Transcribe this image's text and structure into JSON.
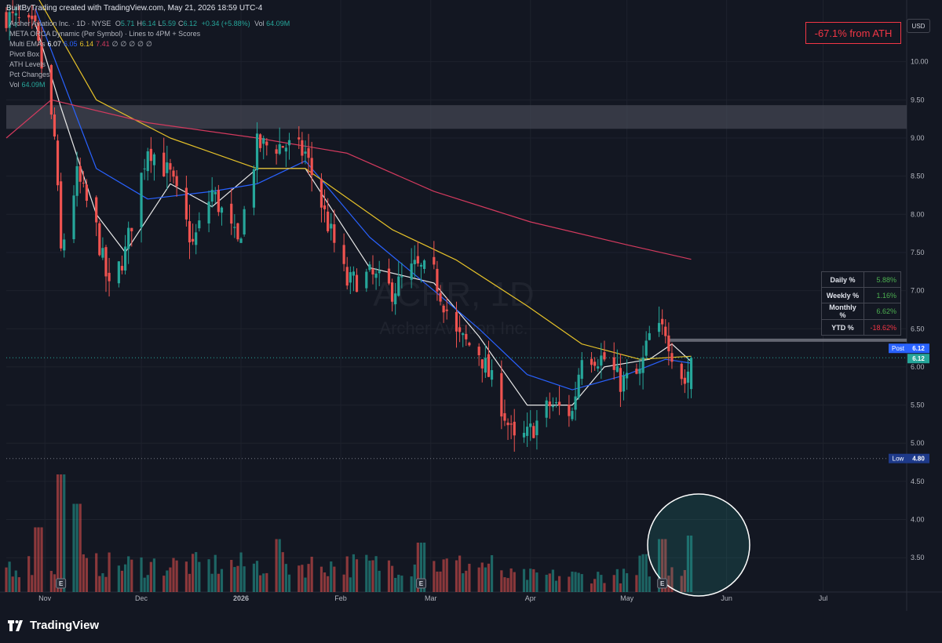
{
  "header": {
    "credit": "BuiltByTrading created with TradingView.com, May 21, 2026 18:59 UTC-4"
  },
  "legend": {
    "symbol_line": "Archer Aviation Inc. · 1D · NYSE",
    "ohlc": [
      {
        "label": "O",
        "value": "5.71"
      },
      {
        "label": "H",
        "value": "6.14"
      },
      {
        "label": "L",
        "value": "5.59"
      },
      {
        "label": "C",
        "value": "6.12"
      }
    ],
    "change": "+0.34 (+5.88%)",
    "vol_label": "Vol",
    "vol_value": "64.09M",
    "indicators": [
      {
        "name": "META ORCA Dynamic (Per Symbol) · Lines to 4PM + Scores",
        "values": []
      },
      {
        "name": "Multi EMAs",
        "values": [
          {
            "text": "6.07",
            "color": "#ffffff"
          },
          {
            "text": "6.05",
            "color": "#2962ff"
          },
          {
            "text": "6.14",
            "color": "#e6c229"
          },
          {
            "text": "7.41",
            "color": "#d33a5e"
          },
          {
            "text": "∅",
            "color": "#b2b5be"
          },
          {
            "text": "∅",
            "color": "#b2b5be"
          },
          {
            "text": "∅",
            "color": "#b2b5be"
          },
          {
            "text": "∅",
            "color": "#b2b5be"
          },
          {
            "text": "∅",
            "color": "#b2b5be"
          }
        ]
      },
      {
        "name": "Pivot Box",
        "values": []
      },
      {
        "name": "ATH Levels",
        "values": []
      },
      {
        "name": "Pct Changes",
        "values": []
      },
      {
        "name": "Vol",
        "values": [
          {
            "text": "64.09M",
            "color": "#26a69a"
          }
        ]
      }
    ]
  },
  "ath_box": "-67.1% from ATH",
  "currency": "USD",
  "watermark": {
    "ticker": "ACHR, 1D",
    "name": "Archer Aviation Inc."
  },
  "pct_table": [
    {
      "label": "Daily %",
      "value": "5.88%",
      "color": "#4caf50"
    },
    {
      "label": "Weekly %",
      "value": "1.16%",
      "color": "#4caf50"
    },
    {
      "label": "Monthly %",
      "value": "6.62%",
      "color": "#4caf50"
    },
    {
      "label": "YTD %",
      "value": "-18.62%",
      "color": "#f23645"
    }
  ],
  "price_labels": [
    {
      "tag": "Post",
      "value": "6.12",
      "color": "#2962ff"
    },
    {
      "tag": "",
      "value": "6.12",
      "color": "#26a69a"
    },
    {
      "tag": "Low",
      "value": "4.80",
      "color": "#1e3a8a"
    }
  ],
  "earnings_marker": "E",
  "footer": {
    "brand": "TradingView"
  },
  "colors": {
    "up": "#26a69a",
    "down": "#ef5350",
    "background": "#131722",
    "grid": "#1e222d",
    "text": "#b2b5be"
  },
  "chart_data": {
    "type": "candlestick",
    "title": "Archer Aviation Inc. · 1D · NYSE",
    "y_axis": {
      "ticks": [
        3.5,
        4.0,
        4.5,
        5.0,
        5.5,
        6.0,
        6.5,
        7.0,
        7.5,
        8.0,
        8.5,
        9.0,
        9.5,
        10.0
      ],
      "range": [
        3.05,
        10.5
      ],
      "side": "right"
    },
    "x_axis": {
      "labels": [
        "Nov",
        "Dec",
        "2026",
        "Feb",
        "Mar",
        "Apr",
        "May",
        "Jun",
        "Jul"
      ],
      "start_date": "2025-10-20",
      "end_date": "2026-07-27"
    },
    "levels": {
      "post": 6.12,
      "last": 6.12,
      "low": 4.8,
      "resistance_line": 6.35
    },
    "zones": [
      {
        "from": 9.12,
        "to": 9.43,
        "label": "Pivot Box"
      }
    ],
    "keypoints": [
      {
        "date": "2025-10-20",
        "price": 10.6
      },
      {
        "date": "2025-10-29",
        "price": 10.4
      },
      {
        "date": "2025-11-04",
        "price": 9.0
      },
      {
        "date": "2025-11-06",
        "price": 7.5
      },
      {
        "date": "2025-11-11",
        "price": 8.5
      },
      {
        "date": "2025-11-17",
        "price": 7.8
      },
      {
        "date": "2025-11-21",
        "price": 7.0
      },
      {
        "date": "2025-11-26",
        "price": 7.5
      },
      {
        "date": "2025-12-03",
        "price": 8.9
      },
      {
        "date": "2025-12-10",
        "price": 8.5
      },
      {
        "date": "2025-12-17",
        "price": 7.6
      },
      {
        "date": "2025-12-23",
        "price": 8.3
      },
      {
        "date": "2025-12-31",
        "price": 7.6
      },
      {
        "date": "2026-01-06",
        "price": 8.9
      },
      {
        "date": "2026-01-15",
        "price": 8.9
      },
      {
        "date": "2026-01-21",
        "price": 8.8
      },
      {
        "date": "2026-01-27",
        "price": 8.0
      },
      {
        "date": "2026-02-03",
        "price": 7.1
      },
      {
        "date": "2026-02-10",
        "price": 7.2
      },
      {
        "date": "2026-02-17",
        "price": 7.0
      },
      {
        "date": "2026-02-24",
        "price": 7.3
      },
      {
        "date": "2026-03-02",
        "price": 7.2
      },
      {
        "date": "2026-03-09",
        "price": 6.4
      },
      {
        "date": "2026-03-16",
        "price": 6.2
      },
      {
        "date": "2026-03-23",
        "price": 5.5
      },
      {
        "date": "2026-03-27",
        "price": 5.0
      },
      {
        "date": "2026-03-31",
        "price": 5.1
      },
      {
        "date": "2026-04-07",
        "price": 5.5
      },
      {
        "date": "2026-04-14",
        "price": 5.4
      },
      {
        "date": "2026-04-17",
        "price": 6.2
      },
      {
        "date": "2026-04-24",
        "price": 6.1
      },
      {
        "date": "2026-04-29",
        "price": 5.8
      },
      {
        "date": "2026-05-05",
        "price": 5.9
      },
      {
        "date": "2026-05-08",
        "price": 6.4
      },
      {
        "date": "2026-05-13",
        "price": 6.5
      },
      {
        "date": "2026-05-15",
        "price": 6.2
      },
      {
        "date": "2026-05-19",
        "price": 5.8
      },
      {
        "date": "2026-05-21",
        "price": 6.12
      }
    ],
    "emas": [
      {
        "name": "EMA white",
        "color": "#e8e8e8",
        "points": [
          {
            "date": "2025-10-29",
            "price": 10.5
          },
          {
            "date": "2025-11-06",
            "price": 9.4
          },
          {
            "date": "2025-11-17",
            "price": 8.0
          },
          {
            "date": "2025-11-26",
            "price": 7.5
          },
          {
            "date": "2025-12-10",
            "price": 8.4
          },
          {
            "date": "2025-12-23",
            "price": 8.1
          },
          {
            "date": "2026-01-06",
            "price": 8.6
          },
          {
            "date": "2026-01-21",
            "price": 8.6
          },
          {
            "date": "2026-02-10",
            "price": 7.3
          },
          {
            "date": "2026-03-02",
            "price": 7.1
          },
          {
            "date": "2026-03-16",
            "price": 6.4
          },
          {
            "date": "2026-03-31",
            "price": 5.5
          },
          {
            "date": "2026-04-14",
            "price": 5.5
          },
          {
            "date": "2026-04-24",
            "price": 6.0
          },
          {
            "date": "2026-05-08",
            "price": 6.1
          },
          {
            "date": "2026-05-15",
            "price": 6.3
          },
          {
            "date": "2026-05-21",
            "price": 6.07
          }
        ]
      },
      {
        "name": "EMA blue",
        "color": "#2962ff",
        "points": [
          {
            "date": "2025-10-29",
            "price": 10.7
          },
          {
            "date": "2025-11-17",
            "price": 8.6
          },
          {
            "date": "2025-12-03",
            "price": 8.2
          },
          {
            "date": "2025-12-23",
            "price": 8.3
          },
          {
            "date": "2026-01-06",
            "price": 8.4
          },
          {
            "date": "2026-01-21",
            "price": 8.7
          },
          {
            "date": "2026-02-10",
            "price": 7.7
          },
          {
            "date": "2026-03-02",
            "price": 7.0
          },
          {
            "date": "2026-03-16",
            "price": 6.5
          },
          {
            "date": "2026-03-31",
            "price": 5.9
          },
          {
            "date": "2026-04-14",
            "price": 5.7
          },
          {
            "date": "2026-05-01",
            "price": 5.9
          },
          {
            "date": "2026-05-13",
            "price": 6.1
          },
          {
            "date": "2026-05-21",
            "price": 6.05
          }
        ]
      },
      {
        "name": "EMA yellow",
        "color": "#e6c229",
        "points": [
          {
            "date": "2025-10-29",
            "price": 10.9
          },
          {
            "date": "2025-11-17",
            "price": 9.5
          },
          {
            "date": "2025-12-10",
            "price": 9.0
          },
          {
            "date": "2026-01-06",
            "price": 8.6
          },
          {
            "date": "2026-01-21",
            "price": 8.6
          },
          {
            "date": "2026-02-17",
            "price": 7.8
          },
          {
            "date": "2026-03-09",
            "price": 7.4
          },
          {
            "date": "2026-03-31",
            "price": 6.8
          },
          {
            "date": "2026-04-17",
            "price": 6.3
          },
          {
            "date": "2026-05-05",
            "price": 6.1
          },
          {
            "date": "2026-05-21",
            "price": 6.14
          }
        ]
      },
      {
        "name": "EMA red",
        "color": "#d33a5e",
        "points": [
          {
            "date": "2025-10-20",
            "price": 9.0
          },
          {
            "date": "2025-11-03",
            "price": 9.5
          },
          {
            "date": "2025-12-03",
            "price": 9.2
          },
          {
            "date": "2026-01-06",
            "price": 9.0
          },
          {
            "date": "2026-02-03",
            "price": 8.8
          },
          {
            "date": "2026-03-02",
            "price": 8.3
          },
          {
            "date": "2026-04-01",
            "price": 7.9
          },
          {
            "date": "2026-05-01",
            "price": 7.6
          },
          {
            "date": "2026-05-21",
            "price": 7.41
          }
        ]
      }
    ],
    "volume": {
      "units": "relative",
      "last": "64.09M",
      "spikes": [
        {
          "date": "2025-11-06",
          "rel": 1.0
        },
        {
          "date": "2025-11-11",
          "rel": 0.75
        },
        {
          "date": "2025-10-30",
          "rel": 0.55
        },
        {
          "date": "2026-01-12",
          "rel": 0.45
        },
        {
          "date": "2026-02-26",
          "rel": 0.42
        },
        {
          "date": "2026-05-12",
          "rel": 0.45
        },
        {
          "date": "2026-05-21",
          "rel": 0.48
        }
      ],
      "earnings_dates": [
        "2025-11-06",
        "2026-02-26",
        "2026-05-12"
      ]
    }
  }
}
